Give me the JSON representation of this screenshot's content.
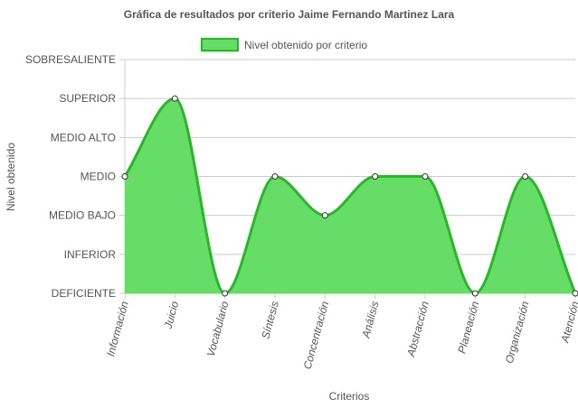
{
  "chart_data": {
    "type": "area",
    "title": "Gráfica de resultados por criterio Jaime Fernando Martinez Lara",
    "xlabel": "Criterios",
    "ylabel": "Nivel obtenido",
    "categories": [
      "Información",
      "Juicio",
      "Vocabulario",
      "Síntesis",
      "Concentración",
      "Análisis",
      "Abstracción",
      "Planeación",
      "Organización",
      "Atención"
    ],
    "y_levels": [
      "DEFICIENTE",
      "INFERIOR",
      "MEDIO BAJO",
      "MEDIO",
      "MEDIO ALTO",
      "SUPERIOR",
      "SOBRESALIENTE"
    ],
    "series": [
      {
        "name": "Nivel obtenido por criterio",
        "values": [
          3,
          5,
          0,
          3,
          2,
          3,
          3,
          0,
          3,
          0
        ],
        "value_labels": [
          "MEDIO",
          "SUPERIOR",
          "DEFICIENTE",
          "MEDIO",
          "MEDIO BAJO",
          "MEDIO",
          "MEDIO",
          "DEFICIENTE",
          "MEDIO",
          "DEFICIENTE"
        ]
      }
    ],
    "ylim": [
      0,
      6
    ],
    "grid": true,
    "legend_position": "top-center",
    "colors": {
      "fill": "#66dd66",
      "line": "#22bb22",
      "point_fill": "#ffffff",
      "point_stroke": "#333333",
      "grid": "#cccccc",
      "text": "#555555"
    }
  }
}
